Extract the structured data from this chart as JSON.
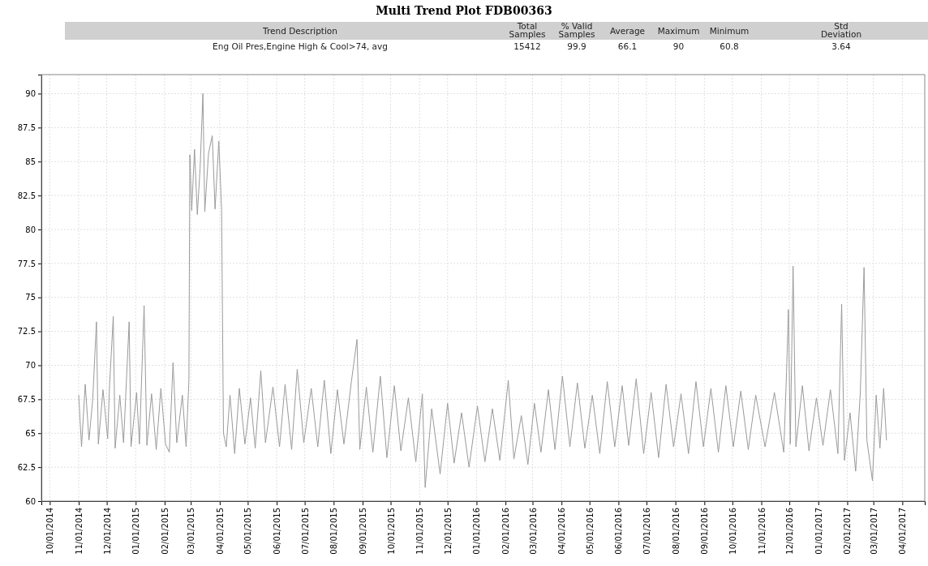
{
  "chart_data": {
    "type": "line",
    "title": "Multi Trend Plot FDB00363",
    "annotations": [
      "Trend Description",
      "Total Samples",
      "% Valid Samples",
      "Average",
      "Maximum",
      "Minimum",
      "Std Deviation",
      "Eng Oil Pres,Engine High & Cool>74, avg",
      "15412",
      "99.9",
      "66.1",
      "90",
      "60.8",
      "3.64"
    ],
    "series": [
      {
        "color": "#9a9a9a",
        "x": [
          "2014-11-01",
          "2014-11-04",
          "2014-11-08",
          "2014-11-12",
          "2014-11-16",
          "2014-11-20",
          "2014-11-22",
          "2014-11-27",
          "2014-12-02",
          "2014-12-04",
          "2014-12-08",
          "2014-12-10",
          "2014-12-15",
          "2014-12-19",
          "2014-12-25",
          "2014-12-27",
          "2015-01-02",
          "2015-01-05",
          "2015-01-10",
          "2015-01-13",
          "2015-01-18",
          "2015-01-23",
          "2015-01-28",
          "2015-02-02",
          "2015-02-06",
          "2015-02-10",
          "2015-02-14",
          "2015-02-20",
          "2015-02-24",
          "2015-02-27",
          "2015-02-28",
          "2015-03-02",
          "2015-03-05",
          "2015-03-08",
          "2015-03-11",
          "2015-03-14",
          "2015-03-16",
          "2015-03-20",
          "2015-03-24",
          "2015-03-27",
          "2015-03-31",
          "2015-04-03",
          "2015-04-05",
          "2015-04-08",
          "2015-04-12",
          "2015-04-17",
          "2015-04-22",
          "2015-04-28",
          "2015-05-04",
          "2015-05-09",
          "2015-05-15",
          "2015-05-20",
          "2015-05-28",
          "2015-06-04",
          "2015-06-10",
          "2015-06-17",
          "2015-06-23",
          "2015-06-30",
          "2015-07-08",
          "2015-07-15",
          "2015-07-22",
          "2015-07-29",
          "2015-08-05",
          "2015-08-12",
          "2015-08-20",
          "2015-08-26",
          "2015-08-29",
          "2015-09-05",
          "2015-09-12",
          "2015-09-20",
          "2015-09-27",
          "2015-10-05",
          "2015-10-12",
          "2015-10-20",
          "2015-10-28",
          "2015-11-04",
          "2015-11-07",
          "2015-11-14",
          "2015-11-23",
          "2015-12-01",
          "2015-12-08",
          "2015-12-16",
          "2015-12-24",
          "2016-01-02",
          "2016-01-10",
          "2016-01-18",
          "2016-01-26",
          "2016-02-04",
          "2016-02-10",
          "2016-02-18",
          "2016-02-25",
          "2016-03-03",
          "2016-03-10",
          "2016-03-18",
          "2016-03-25",
          "2016-04-02",
          "2016-04-10",
          "2016-04-18",
          "2016-04-26",
          "2016-05-04",
          "2016-05-12",
          "2016-05-20",
          "2016-05-28",
          "2016-06-05",
          "2016-06-12",
          "2016-06-20",
          "2016-06-28",
          "2016-07-06",
          "2016-07-14",
          "2016-07-22",
          "2016-07-30",
          "2016-08-07",
          "2016-08-15",
          "2016-08-23",
          "2016-08-31",
          "2016-09-08",
          "2016-09-16",
          "2016-09-24",
          "2016-10-02",
          "2016-10-10",
          "2016-10-18",
          "2016-10-26",
          "2016-11-05",
          "2016-11-15",
          "2016-11-25",
          "2016-11-28",
          "2016-11-30",
          "2016-12-02",
          "2016-12-05",
          "2016-12-08",
          "2016-12-15",
          "2016-12-22",
          "2016-12-30",
          "2017-01-06",
          "2017-01-14",
          "2017-01-22",
          "2017-01-26",
          "2017-01-29",
          "2017-02-04",
          "2017-02-10",
          "2017-02-15",
          "2017-02-19",
          "2017-02-22",
          "2017-02-28",
          "2017-03-04",
          "2017-03-08",
          "2017-03-12",
          "2017-03-15"
        ],
        "values": [
          67.8,
          64.0,
          68.6,
          64.5,
          67.5,
          73.2,
          64.2,
          68.2,
          64.6,
          68.5,
          73.6,
          63.9,
          67.8,
          64.3,
          73.2,
          64.0,
          68.0,
          64.2,
          74.4,
          64.1,
          67.9,
          63.8,
          68.3,
          64.2,
          63.6,
          70.2,
          64.3,
          67.8,
          64.0,
          68.9,
          85.5,
          81.4,
          85.9,
          81.1,
          84.5,
          90.0,
          81.3,
          85.6,
          86.9,
          81.5,
          86.5,
          81.4,
          65.0,
          64.0,
          67.8,
          63.5,
          68.3,
          64.2,
          67.6,
          63.9,
          69.6,
          64.3,
          68.4,
          64.0,
          68.6,
          63.8,
          69.7,
          64.3,
          68.3,
          64.0,
          68.9,
          63.5,
          68.2,
          64.2,
          68.8,
          71.9,
          63.8,
          68.4,
          63.6,
          69.2,
          63.2,
          68.5,
          63.7,
          67.6,
          62.9,
          67.9,
          61.0,
          66.8,
          62.0,
          67.2,
          62.8,
          66.5,
          62.5,
          67.0,
          62.9,
          66.8,
          63.0,
          68.9,
          63.1,
          66.3,
          62.7,
          67.2,
          63.6,
          68.2,
          63.8,
          69.2,
          64.0,
          68.7,
          63.9,
          67.8,
          63.5,
          68.8,
          64.0,
          68.5,
          64.1,
          69.0,
          63.5,
          68.0,
          63.2,
          68.6,
          64.0,
          67.9,
          63.5,
          68.8,
          64.0,
          68.3,
          63.6,
          68.5,
          64.0,
          68.1,
          63.8,
          67.8,
          64.0,
          68.0,
          63.6,
          69.5,
          74.1,
          64.2,
          77.3,
          64.0,
          68.5,
          63.7,
          67.6,
          64.1,
          68.2,
          63.5,
          74.5,
          63.0,
          66.5,
          62.2,
          68.0,
          77.2,
          64.5,
          61.5,
          67.8,
          63.9,
          68.3,
          64.5
        ]
      }
    ],
    "xlim": [
      "2014-09-22",
      "2017-04-25"
    ],
    "xticks": [
      {
        "value": "2014-10-01",
        "label": "10/01/2014"
      },
      {
        "value": "2014-11-01",
        "label": "11/01/2014"
      },
      {
        "value": "2014-12-01",
        "label": "12/01/2014"
      },
      {
        "value": "2015-01-01",
        "label": "01/01/2015"
      },
      {
        "value": "2015-02-01",
        "label": "02/01/2015"
      },
      {
        "value": "2015-03-01",
        "label": "03/01/2015"
      },
      {
        "value": "2015-04-01",
        "label": "04/01/2015"
      },
      {
        "value": "2015-05-01",
        "label": "05/01/2015"
      },
      {
        "value": "2015-06-01",
        "label": "06/01/2015"
      },
      {
        "value": "2015-07-01",
        "label": "07/01/2015"
      },
      {
        "value": "2015-08-01",
        "label": "08/01/2015"
      },
      {
        "value": "2015-09-01",
        "label": "09/01/2015"
      },
      {
        "value": "2015-10-01",
        "label": "10/01/2015"
      },
      {
        "value": "2015-11-01",
        "label": "11/01/2015"
      },
      {
        "value": "2015-12-01",
        "label": "12/01/2015"
      },
      {
        "value": "2016-01-01",
        "label": "01/01/2016"
      },
      {
        "value": "2016-02-01",
        "label": "02/01/2016"
      },
      {
        "value": "2016-03-01",
        "label": "03/01/2016"
      },
      {
        "value": "2016-04-01",
        "label": "04/01/2016"
      },
      {
        "value": "2016-05-01",
        "label": "05/01/2016"
      },
      {
        "value": "2016-06-01",
        "label": "06/01/2016"
      },
      {
        "value": "2016-07-01",
        "label": "07/01/2016"
      },
      {
        "value": "2016-08-01",
        "label": "08/01/2016"
      },
      {
        "value": "2016-09-01",
        "label": "09/01/2016"
      },
      {
        "value": "2016-10-01",
        "label": "10/01/2016"
      },
      {
        "value": "2016-11-01",
        "label": "11/01/2016"
      },
      {
        "value": "2016-12-01",
        "label": "12/01/2016"
      },
      {
        "value": "2017-01-01",
        "label": "01/01/2017"
      },
      {
        "value": "2017-02-01",
        "label": "02/01/2017"
      },
      {
        "value": "2017-03-01",
        "label": "03/01/2017"
      },
      {
        "value": "2017-04-01",
        "label": "04/01/2017"
      }
    ],
    "ylim": [
      60,
      91.4
    ],
    "yticks": [
      60,
      62.5,
      65,
      67.5,
      70,
      72.5,
      75,
      77.5,
      80,
      82.5,
      85,
      87.5,
      90
    ],
    "grid": true
  }
}
